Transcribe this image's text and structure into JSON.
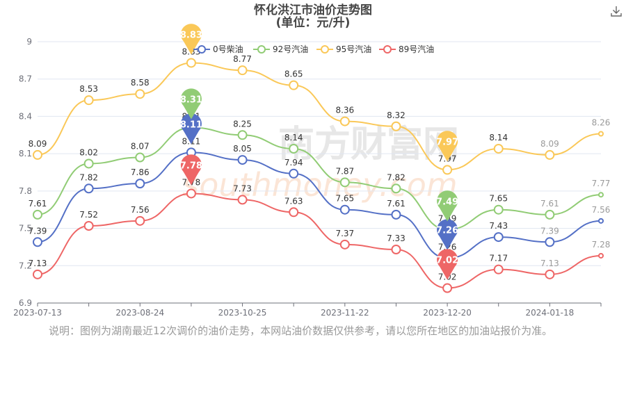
{
  "chart_data": {
    "type": "line",
    "title": "怀化洪江市油价走势图",
    "subtitle": "(单位：元/升)",
    "x": [
      "2023-07-13",
      "",
      "2023-08-24",
      "",
      "2023-10-25",
      "",
      "2023-11-22",
      "",
      "2023-12-20",
      "",
      "2024-01-18",
      ""
    ],
    "x_tick_labels": [
      "2023-07-13",
      "2023-08-24",
      "2023-10-25",
      "2023-11-22",
      "2023-12-20",
      "2024-01-18"
    ],
    "y_ticks": [
      "6.9",
      "7.2",
      "7.5",
      "7.8",
      "8.1",
      "8.4",
      "8.7",
      "9"
    ],
    "ylim": [
      6.9,
      9.0
    ],
    "legend_position": "top",
    "series": [
      {
        "name": "0号柴油",
        "color": "#5470c6",
        "values": [
          7.39,
          7.82,
          7.86,
          8.11,
          8.05,
          7.94,
          7.65,
          7.61,
          7.26,
          7.43,
          7.39,
          7.56
        ],
        "max_label": "8.11",
        "min_label": "7.26"
      },
      {
        "name": "92号汽油",
        "color": "#91cc75",
        "values": [
          7.61,
          8.02,
          8.07,
          8.31,
          8.25,
          8.14,
          7.87,
          7.82,
          7.49,
          7.65,
          7.61,
          7.77
        ],
        "max_label": "8.31",
        "min_label": "7.49"
      },
      {
        "name": "95号汽油",
        "color": "#fac858",
        "values": [
          8.09,
          8.53,
          8.58,
          8.83,
          8.77,
          8.65,
          8.36,
          8.32,
          7.97,
          8.14,
          8.09,
          8.26
        ],
        "max_label": "8.83",
        "min_label": "7.97"
      },
      {
        "name": "89号汽油",
        "color": "#ee6666",
        "values": [
          7.13,
          7.52,
          7.56,
          7.78,
          7.73,
          7.63,
          7.37,
          7.33,
          7.02,
          7.17,
          7.13,
          7.28
        ],
        "max_label": "7.78",
        "min_label": "7.02"
      }
    ],
    "grid": true
  },
  "watermark": {
    "line1": "南方财富网",
    "line2": "southmoney.com"
  },
  "note": "说明：图例为湖南最近12次调价的油价走势，本网站油价数据仅供参考，请以您所在地区的加油站报价为准。",
  "icons": {
    "download": "download-icon"
  }
}
